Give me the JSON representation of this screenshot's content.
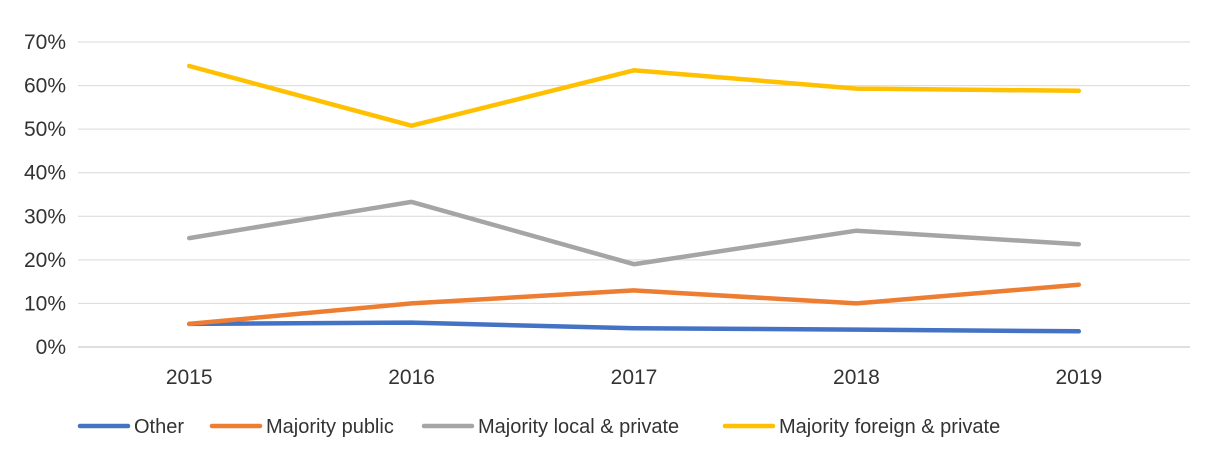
{
  "chart_data": {
    "type": "line",
    "title": "",
    "xlabel": "",
    "ylabel": "",
    "categories": [
      "2015",
      "2016",
      "2017",
      "2018",
      "2019"
    ],
    "ylim": [
      0,
      0.7
    ],
    "yticks": [
      "0%",
      "10%",
      "20%",
      "30%",
      "40%",
      "50%",
      "60%",
      "70%"
    ],
    "grid": true,
    "legend_position": "bottom",
    "series": [
      {
        "name": "Other",
        "color": "#4472C4",
        "values": [
          0.053,
          0.056,
          0.043,
          0.04,
          0.036
        ]
      },
      {
        "name": "Majority public",
        "color": "#ED7D31",
        "values": [
          0.053,
          0.1,
          0.13,
          0.1,
          0.143
        ]
      },
      {
        "name": "Majority local & private",
        "color": "#A5A5A5",
        "values": [
          0.25,
          0.333,
          0.19,
          0.267,
          0.236
        ]
      },
      {
        "name": "Majority foreign & private",
        "color": "#FFC000",
        "values": [
          0.645,
          0.508,
          0.635,
          0.593,
          0.588
        ]
      }
    ]
  }
}
